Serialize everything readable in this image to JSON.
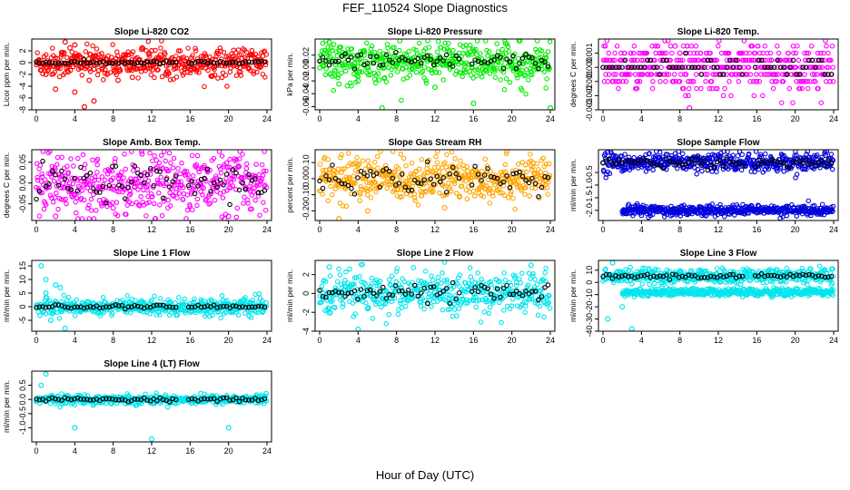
{
  "figure": {
    "title": "FEF_110524  Slope Diagnostics",
    "xlabel": "Hour of Day (UTC)"
  },
  "chart_data": [
    {
      "type": "scatter",
      "title": "Slope Li-820 CO2",
      "ylabel": "Licor ppm per min.",
      "color": "#ff0000",
      "xlim": [
        0,
        24
      ],
      "ylim": [
        -8,
        4
      ],
      "xticks": [
        0,
        4,
        8,
        12,
        16,
        20,
        24
      ],
      "yticks": [
        -8,
        -6,
        -4,
        -2,
        0,
        2
      ],
      "yticklabels": [
        "-8",
        "-6",
        "-4",
        "-2",
        "0",
        "2"
      ],
      "noise": 0.3,
      "spread": 1.2,
      "outliers": [
        [
          1,
          -2
        ],
        [
          2,
          -4.5
        ],
        [
          3,
          3.5
        ],
        [
          4,
          -5
        ],
        [
          5,
          -7.5
        ],
        [
          6,
          -6.5
        ],
        [
          5.5,
          -3
        ],
        [
          8.5,
          -3
        ],
        [
          10,
          -2.5
        ],
        [
          3.5,
          2.5
        ],
        [
          4,
          3
        ],
        [
          11,
          2.5
        ],
        [
          12,
          2
        ]
      ],
      "mean_noise": 0.15
    },
    {
      "type": "scatter",
      "title": "Slope Li-820 Pressure",
      "ylabel": "kPa per min.",
      "color": "#00ee00",
      "xlim": [
        0,
        24
      ],
      "ylim": [
        -0.065,
        0.045
      ],
      "xticks": [
        0,
        4,
        8,
        12,
        16,
        20,
        24
      ],
      "yticks": [
        -0.06,
        -0.04,
        -0.02,
        0.0,
        0.02
      ],
      "yticklabels": [
        "-0.06",
        "-0.04",
        "-0.02",
        "0.00",
        "0.02"
      ],
      "noise": 0.008,
      "spread": 0.015,
      "center": 0.01,
      "outliers": [
        [
          2,
          -0.025
        ],
        [
          4,
          -0.02
        ],
        [
          6.5,
          -0.065
        ],
        [
          16,
          -0.055
        ],
        [
          24,
          -0.062
        ],
        [
          12,
          -0.03
        ],
        [
          1,
          0.04
        ]
      ],
      "mean_noise": 0.006
    },
    {
      "type": "scatter",
      "title": "Slope Li-820 Temp.",
      "ylabel": "degrees C per min.",
      "color": "#ff00ff",
      "xlim": [
        0,
        24
      ],
      "ylim": [
        -0.003,
        0.002
      ],
      "xticks": [
        0,
        4,
        8,
        12,
        16,
        20,
        24
      ],
      "yticks": [
        -0.003,
        -0.002,
        -0.001,
        0.0,
        0.001
      ],
      "yticklabels": [
        "-0.003",
        "-0.002",
        "-0.001",
        "0.000",
        "0.001"
      ],
      "noise": 0.0004,
      "spread": 0.0008,
      "quantize": 0.0005,
      "outliers": [
        [
          7.5,
          0.0015
        ],
        [
          8,
          0.001
        ],
        [
          9,
          -0.003
        ],
        [
          1,
          -0.001
        ]
      ],
      "mean_noise": 0.0003
    },
    {
      "type": "scatter",
      "title": "Slope Amb. Box Temp.",
      "ylabel": "degrees C per min.",
      "color": "#ff00ff",
      "xlim": [
        0,
        24
      ],
      "ylim": [
        -0.09,
        0.08
      ],
      "xticks": [
        0,
        4,
        8,
        12,
        16,
        20,
        24
      ],
      "yticks": [
        -0.05,
        0.0,
        0.05
      ],
      "yticklabels": [
        "-0.05",
        "0.00",
        "0.05"
      ],
      "noise": 0.03,
      "spread": 0.035,
      "outliers": [
        [
          2,
          -0.08
        ],
        [
          11,
          0.07
        ],
        [
          20,
          -0.08
        ],
        [
          8,
          -0.06
        ]
      ],
      "mean_noise": 0.02
    },
    {
      "type": "scatter",
      "title": "Slope Gas Stream RH",
      "ylabel": "percent per min.",
      "color": "#ffa500",
      "xlim": [
        0,
        24
      ],
      "ylim": [
        -0.26,
        0.18
      ],
      "xticks": [
        0,
        4,
        8,
        12,
        16,
        20,
        24
      ],
      "yticks": [
        -0.2,
        -0.1,
        0.0,
        0.1
      ],
      "yticklabels": [
        "-0.20",
        "-0.10",
        "0.00",
        "0.10"
      ],
      "noise": 0.04,
      "spread": 0.07,
      "outliers": [
        [
          2,
          -0.25
        ],
        [
          5,
          -0.2
        ],
        [
          13,
          -0.18
        ]
      ],
      "mean_noise": 0.04
    },
    {
      "type": "scatter",
      "title": "Slope Sample Flow",
      "ylabel": "ml/min per min.",
      "color": "#0000dd",
      "xlim": [
        0,
        24
      ],
      "ylim": [
        -2.4,
        0.4
      ],
      "xticks": [
        0,
        4,
        8,
        12,
        16,
        20,
        24
      ],
      "yticks": [
        -2.0,
        -1.5,
        -1.0,
        -0.5
      ],
      "yticklabels": [
        "-2.0",
        "-1.5",
        "-1.0",
        "-0.5"
      ],
      "noise": 0.15,
      "spread": 0.2,
      "bands": [
        -0.1,
        -2.0
      ],
      "center": -0.1,
      "outliers": [
        [
          0.5,
          0.3
        ],
        [
          4,
          -2.2
        ]
      ],
      "mean_noise": 0.1
    },
    {
      "type": "scatter",
      "title": "Slope Line 1 Flow",
      "ylabel": "ml/min per min.",
      "color": "#00e5ee",
      "xlim": [
        0,
        24
      ],
      "ylim": [
        -9,
        17
      ],
      "xticks": [
        0,
        4,
        8,
        12,
        16,
        20,
        24
      ],
      "yticks": [
        -5,
        0,
        5,
        10,
        15
      ],
      "yticklabels": [
        "-5",
        "0",
        "5",
        "10",
        "15"
      ],
      "noise": 1,
      "spread": 1.5,
      "outliers": [
        [
          0.5,
          15
        ],
        [
          1,
          10
        ],
        [
          1.5,
          -5
        ],
        [
          2,
          8
        ],
        [
          3,
          -8
        ],
        [
          1,
          5
        ],
        [
          2.5,
          7
        ]
      ],
      "mean_noise": 0.3
    },
    {
      "type": "scatter",
      "title": "Slope Line 2 Flow",
      "ylabel": "ml/min per min.",
      "color": "#00e5ee",
      "xlim": [
        0,
        24
      ],
      "ylim": [
        -4,
        3.5
      ],
      "xticks": [
        0,
        4,
        8,
        12,
        16,
        20,
        24
      ],
      "yticks": [
        -4,
        -2,
        0,
        2
      ],
      "yticklabels": [
        "-4",
        "-2",
        "0",
        "2"
      ],
      "noise": 0.6,
      "spread": 1.1,
      "outliers": [
        [
          4,
          -3.8
        ],
        [
          1,
          2.8
        ],
        [
          22,
          3
        ]
      ],
      "mean_noise": 0.5
    },
    {
      "type": "scatter",
      "title": "Slope Line 3 Flow",
      "ylabel": "ml/min per min.",
      "color": "#00e5ee",
      "xlim": [
        0,
        24
      ],
      "ylim": [
        -40,
        18
      ],
      "xticks": [
        0,
        4,
        8,
        12,
        16,
        20,
        24
      ],
      "yticks": [
        -40,
        -30,
        -20,
        -10,
        0,
        10
      ],
      "yticklabels": [
        "-40",
        "-30",
        "-20",
        "-10",
        "0",
        "10"
      ],
      "noise": 2,
      "spread": 3,
      "bands": [
        5,
        -8
      ],
      "center": 5,
      "outliers": [
        [
          1,
          16
        ],
        [
          0.5,
          -30
        ],
        [
          3,
          -38
        ],
        [
          2,
          -20
        ]
      ],
      "mean_noise": 1
    },
    {
      "type": "scatter",
      "title": "Slope Line 4 (LT) Flow",
      "ylabel": "ml/min per min.",
      "color": "#00e5ee",
      "xlim": [
        0,
        24
      ],
      "ylim": [
        -1.5,
        1.0
      ],
      "xticks": [
        0,
        4,
        8,
        12,
        16,
        20,
        24
      ],
      "yticks": [
        -1.0,
        -0.5,
        0.0,
        0.5
      ],
      "yticklabels": [
        "-1.0",
        "-0.5",
        "0.0",
        "0.5"
      ],
      "noise": 0.05,
      "spread": 0.08,
      "outliers": [
        [
          1,
          0.9
        ],
        [
          0.5,
          0.5
        ],
        [
          4,
          -1.0
        ],
        [
          12,
          -1.4
        ],
        [
          20,
          -1.0
        ]
      ],
      "mean_noise": 0.03
    }
  ]
}
